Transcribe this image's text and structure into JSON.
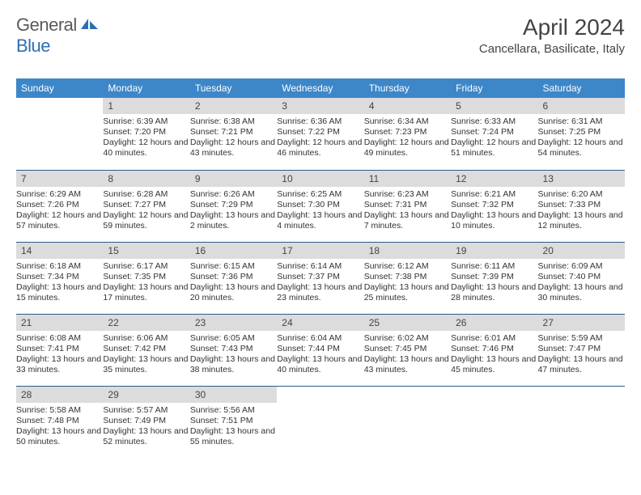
{
  "brand": {
    "part1": "General",
    "part2": "Blue"
  },
  "title": "April 2024",
  "location": "Cancellara, Basilicate, Italy",
  "header_bg": "#3d87c9",
  "header_fg": "#ffffff",
  "daynum_bg": "#dcdcdc",
  "divider_color": "#2d5a8a",
  "text_color": "#333333",
  "font_size_title": 28,
  "font_size_location": 15,
  "font_size_header": 12,
  "font_size_cell": 10.5,
  "day_names": [
    "Sunday",
    "Monday",
    "Tuesday",
    "Wednesday",
    "Thursday",
    "Friday",
    "Saturday"
  ],
  "weeks": [
    [
      null,
      {
        "n": "1",
        "sr": "6:39 AM",
        "ss": "7:20 PM",
        "dl": "Daylight: 12 hours and 40 minutes."
      },
      {
        "n": "2",
        "sr": "6:38 AM",
        "ss": "7:21 PM",
        "dl": "Daylight: 12 hours and 43 minutes."
      },
      {
        "n": "3",
        "sr": "6:36 AM",
        "ss": "7:22 PM",
        "dl": "Daylight: 12 hours and 46 minutes."
      },
      {
        "n": "4",
        "sr": "6:34 AM",
        "ss": "7:23 PM",
        "dl": "Daylight: 12 hours and 49 minutes."
      },
      {
        "n": "5",
        "sr": "6:33 AM",
        "ss": "7:24 PM",
        "dl": "Daylight: 12 hours and 51 minutes."
      },
      {
        "n": "6",
        "sr": "6:31 AM",
        "ss": "7:25 PM",
        "dl": "Daylight: 12 hours and 54 minutes."
      }
    ],
    [
      {
        "n": "7",
        "sr": "6:29 AM",
        "ss": "7:26 PM",
        "dl": "Daylight: 12 hours and 57 minutes."
      },
      {
        "n": "8",
        "sr": "6:28 AM",
        "ss": "7:27 PM",
        "dl": "Daylight: 12 hours and 59 minutes."
      },
      {
        "n": "9",
        "sr": "6:26 AM",
        "ss": "7:29 PM",
        "dl": "Daylight: 13 hours and 2 minutes."
      },
      {
        "n": "10",
        "sr": "6:25 AM",
        "ss": "7:30 PM",
        "dl": "Daylight: 13 hours and 4 minutes."
      },
      {
        "n": "11",
        "sr": "6:23 AM",
        "ss": "7:31 PM",
        "dl": "Daylight: 13 hours and 7 minutes."
      },
      {
        "n": "12",
        "sr": "6:21 AM",
        "ss": "7:32 PM",
        "dl": "Daylight: 13 hours and 10 minutes."
      },
      {
        "n": "13",
        "sr": "6:20 AM",
        "ss": "7:33 PM",
        "dl": "Daylight: 13 hours and 12 minutes."
      }
    ],
    [
      {
        "n": "14",
        "sr": "6:18 AM",
        "ss": "7:34 PM",
        "dl": "Daylight: 13 hours and 15 minutes."
      },
      {
        "n": "15",
        "sr": "6:17 AM",
        "ss": "7:35 PM",
        "dl": "Daylight: 13 hours and 17 minutes."
      },
      {
        "n": "16",
        "sr": "6:15 AM",
        "ss": "7:36 PM",
        "dl": "Daylight: 13 hours and 20 minutes."
      },
      {
        "n": "17",
        "sr": "6:14 AM",
        "ss": "7:37 PM",
        "dl": "Daylight: 13 hours and 23 minutes."
      },
      {
        "n": "18",
        "sr": "6:12 AM",
        "ss": "7:38 PM",
        "dl": "Daylight: 13 hours and 25 minutes."
      },
      {
        "n": "19",
        "sr": "6:11 AM",
        "ss": "7:39 PM",
        "dl": "Daylight: 13 hours and 28 minutes."
      },
      {
        "n": "20",
        "sr": "6:09 AM",
        "ss": "7:40 PM",
        "dl": "Daylight: 13 hours and 30 minutes."
      }
    ],
    [
      {
        "n": "21",
        "sr": "6:08 AM",
        "ss": "7:41 PM",
        "dl": "Daylight: 13 hours and 33 minutes."
      },
      {
        "n": "22",
        "sr": "6:06 AM",
        "ss": "7:42 PM",
        "dl": "Daylight: 13 hours and 35 minutes."
      },
      {
        "n": "23",
        "sr": "6:05 AM",
        "ss": "7:43 PM",
        "dl": "Daylight: 13 hours and 38 minutes."
      },
      {
        "n": "24",
        "sr": "6:04 AM",
        "ss": "7:44 PM",
        "dl": "Daylight: 13 hours and 40 minutes."
      },
      {
        "n": "25",
        "sr": "6:02 AM",
        "ss": "7:45 PM",
        "dl": "Daylight: 13 hours and 43 minutes."
      },
      {
        "n": "26",
        "sr": "6:01 AM",
        "ss": "7:46 PM",
        "dl": "Daylight: 13 hours and 45 minutes."
      },
      {
        "n": "27",
        "sr": "5:59 AM",
        "ss": "7:47 PM",
        "dl": "Daylight: 13 hours and 47 minutes."
      }
    ],
    [
      {
        "n": "28",
        "sr": "5:58 AM",
        "ss": "7:48 PM",
        "dl": "Daylight: 13 hours and 50 minutes."
      },
      {
        "n": "29",
        "sr": "5:57 AM",
        "ss": "7:49 PM",
        "dl": "Daylight: 13 hours and 52 minutes."
      },
      {
        "n": "30",
        "sr": "5:56 AM",
        "ss": "7:51 PM",
        "dl": "Daylight: 13 hours and 55 minutes."
      },
      null,
      null,
      null,
      null
    ]
  ]
}
